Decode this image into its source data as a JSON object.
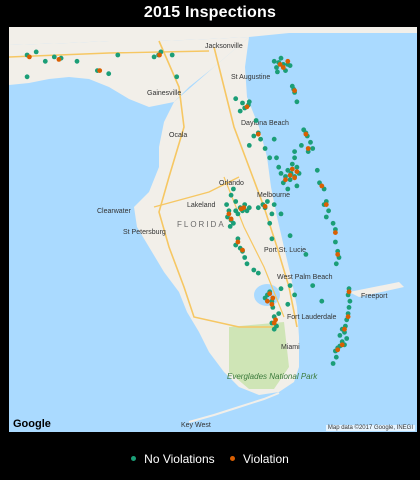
{
  "title": "2015 Inspections",
  "colors": {
    "no_violation": "#1b9e77",
    "violation": "#d95f02",
    "water": "#aadaff",
    "land": "#f2efe9",
    "park": "#cfe5b6",
    "road": "#f6c763"
  },
  "legend": {
    "items": [
      {
        "label": "No Violations",
        "color": "#1b9e77"
      },
      {
        "label": "Violation",
        "color": "#d95f02"
      }
    ]
  },
  "map": {
    "labels": {
      "jacksonville": "Jacksonville",
      "st_augustine": "St Augustine",
      "gainesville": "Gainesville",
      "ocala": "Ocala",
      "daytona": "Daytona Beach",
      "orlando": "Orlando",
      "melbourne": "Melbourne",
      "lakeland": "Lakeland",
      "clearwater": "Clearwater",
      "st_petersburg": "St Petersburg",
      "port_st_lucie": "Port St. Lucie",
      "west_palm_beach": "West Palm Beach",
      "freeport": "Freeport",
      "fort_lauderdale": "Fort Lauderdale",
      "miami": "Miami",
      "key_west": "Key West",
      "everglades": "Everglades National Park",
      "state": "FLORIDA"
    },
    "logo": "Google",
    "attribution": "Map data ©2017 Google, INEGI"
  },
  "chart_data": {
    "type": "scatter",
    "title": "2015 Inspections",
    "series": [
      {
        "name": "No Violations",
        "color": "#1b9e77",
        "points": [
          [
            -87.2,
            30.45
          ],
          [
            -87.0,
            30.5
          ],
          [
            -86.6,
            30.42
          ],
          [
            -86.45,
            30.4
          ],
          [
            -86.8,
            30.35
          ],
          [
            -86.1,
            30.35
          ],
          [
            -85.65,
            30.2
          ],
          [
            -85.4,
            30.15
          ],
          [
            -85.2,
            30.45
          ],
          [
            -84.3,
            30.45
          ],
          [
            -84.25,
            30.5
          ],
          [
            -84.4,
            30.42
          ],
          [
            -83.9,
            30.1
          ],
          [
            -84.0,
            30.45
          ],
          [
            -87.2,
            30.1
          ],
          [
            -81.65,
            30.33
          ],
          [
            -81.55,
            30.3
          ],
          [
            -81.7,
            30.25
          ],
          [
            -81.45,
            30.3
          ],
          [
            -81.4,
            30.28
          ],
          [
            -81.6,
            30.4
          ],
          [
            -81.75,
            30.35
          ],
          [
            -81.5,
            30.2
          ],
          [
            -81.68,
            30.18
          ],
          [
            -81.32,
            29.9
          ],
          [
            -81.3,
            29.85
          ],
          [
            -81.35,
            29.95
          ],
          [
            -81.25,
            29.7
          ],
          [
            -82.32,
            29.65
          ],
          [
            -82.4,
            29.6
          ],
          [
            -82.3,
            29.7
          ],
          [
            -82.45,
            29.68
          ],
          [
            -82.5,
            29.55
          ],
          [
            -82.15,
            29.4
          ],
          [
            -82.6,
            29.75
          ],
          [
            -82.1,
            29.2
          ],
          [
            -82.2,
            29.15
          ],
          [
            -82.05,
            29.1
          ],
          [
            -81.95,
            28.95
          ],
          [
            -82.3,
            29.0
          ],
          [
            -81.75,
            29.1
          ],
          [
            -81.05,
            29.2
          ],
          [
            -81.02,
            29.15
          ],
          [
            -81.1,
            29.25
          ],
          [
            -80.95,
            29.05
          ],
          [
            -80.9,
            28.95
          ],
          [
            -81.0,
            28.9
          ],
          [
            -81.15,
            29.0
          ],
          [
            -81.3,
            28.9
          ],
          [
            -81.38,
            28.55
          ],
          [
            -81.3,
            28.5
          ],
          [
            -81.45,
            28.6
          ],
          [
            -81.25,
            28.65
          ],
          [
            -81.4,
            28.45
          ],
          [
            -81.5,
            28.5
          ],
          [
            -81.2,
            28.55
          ],
          [
            -81.35,
            28.7
          ],
          [
            -81.55,
            28.4
          ],
          [
            -81.6,
            28.55
          ],
          [
            -81.7,
            28.8
          ],
          [
            -81.85,
            28.8
          ],
          [
            -81.65,
            28.65
          ],
          [
            -81.25,
            28.35
          ],
          [
            -81.45,
            28.3
          ],
          [
            -81.3,
            28.8
          ],
          [
            -80.8,
            28.6
          ],
          [
            -80.75,
            28.4
          ],
          [
            -80.65,
            28.3
          ],
          [
            -80.6,
            28.1
          ],
          [
            -80.65,
            28.05
          ],
          [
            -80.55,
            27.95
          ],
          [
            -80.6,
            27.85
          ],
          [
            -80.45,
            27.75
          ],
          [
            -80.4,
            27.65
          ],
          [
            -80.4,
            27.45
          ],
          [
            -80.35,
            27.3
          ],
          [
            -80.32,
            27.2
          ],
          [
            -80.38,
            27.1
          ],
          [
            -82.45,
            27.95
          ],
          [
            -82.5,
            28.0
          ],
          [
            -82.4,
            28.05
          ],
          [
            -82.55,
            27.9
          ],
          [
            -82.35,
            27.95
          ],
          [
            -82.3,
            28.0
          ],
          [
            -82.6,
            28.1
          ],
          [
            -82.7,
            28.2
          ],
          [
            -82.65,
            28.3
          ],
          [
            -82.75,
            27.95
          ],
          [
            -82.78,
            27.85
          ],
          [
            -82.65,
            27.75
          ],
          [
            -82.7,
            27.8
          ],
          [
            -82.72,
            27.7
          ],
          [
            -82.6,
            27.95
          ],
          [
            -82.8,
            28.05
          ],
          [
            -82.0,
            28.05
          ],
          [
            -81.95,
            28.0
          ],
          [
            -81.9,
            28.1
          ],
          [
            -82.1,
            28.0
          ],
          [
            -81.75,
            28.05
          ],
          [
            -81.6,
            27.9
          ],
          [
            -81.8,
            27.9
          ],
          [
            -81.85,
            27.75
          ],
          [
            -82.55,
            27.5
          ],
          [
            -82.6,
            27.4
          ],
          [
            -82.5,
            27.35
          ],
          [
            -82.45,
            27.3
          ],
          [
            -82.4,
            27.2
          ],
          [
            -82.35,
            27.1
          ],
          [
            -82.2,
            27.0
          ],
          [
            -82.1,
            26.95
          ],
          [
            -81.85,
            26.65
          ],
          [
            -81.9,
            26.6
          ],
          [
            -81.95,
            26.55
          ],
          [
            -81.8,
            26.5
          ],
          [
            -81.78,
            26.4
          ],
          [
            -81.75,
            26.25
          ],
          [
            -81.8,
            26.15
          ],
          [
            -81.7,
            26.1
          ],
          [
            -81.75,
            26.05
          ],
          [
            -81.6,
            26.7
          ],
          [
            -81.4,
            26.75
          ],
          [
            -81.3,
            26.6
          ],
          [
            -81.45,
            26.45
          ],
          [
            -81.65,
            26.3
          ],
          [
            -80.1,
            26.7
          ],
          [
            -80.12,
            26.6
          ],
          [
            -80.08,
            26.5
          ],
          [
            -80.1,
            26.4
          ],
          [
            -80.12,
            26.3
          ],
          [
            -80.15,
            26.2
          ],
          [
            -80.18,
            26.1
          ],
          [
            -80.2,
            26.0
          ],
          [
            -80.25,
            26.05
          ],
          [
            -80.3,
            25.95
          ],
          [
            -80.25,
            25.85
          ],
          [
            -80.3,
            25.78
          ],
          [
            -80.35,
            25.75
          ],
          [
            -80.4,
            25.7
          ],
          [
            -80.38,
            25.6
          ],
          [
            -80.45,
            25.5
          ],
          [
            -80.2,
            25.8
          ],
          [
            -80.15,
            25.9
          ],
          [
            -80.9,
            26.75
          ],
          [
            -81.05,
            27.25
          ],
          [
            -81.4,
            27.55
          ],
          [
            -81.8,
            27.5
          ],
          [
            -80.7,
            26.5
          ]
        ]
      },
      {
        "name": "Violation",
        "color": "#d95f02",
        "points": [
          [
            -87.15,
            30.42
          ],
          [
            -86.5,
            30.38
          ],
          [
            -84.28,
            30.45
          ],
          [
            -85.6,
            30.2
          ],
          [
            -81.62,
            30.3
          ],
          [
            -81.55,
            30.25
          ],
          [
            -81.45,
            30.35
          ],
          [
            -81.3,
            29.88
          ],
          [
            -82.35,
            29.62
          ],
          [
            -82.1,
            29.18
          ],
          [
            -81.05,
            29.18
          ],
          [
            -81.0,
            28.95
          ],
          [
            -81.4,
            28.52
          ],
          [
            -81.3,
            28.48
          ],
          [
            -81.5,
            28.45
          ],
          [
            -81.35,
            28.62
          ],
          [
            -81.25,
            28.58
          ],
          [
            -80.7,
            28.35
          ],
          [
            -80.6,
            28.05
          ],
          [
            -80.4,
            27.6
          ],
          [
            -80.35,
            27.25
          ],
          [
            -82.48,
            27.98
          ],
          [
            -82.42,
            28.0
          ],
          [
            -82.7,
            27.82
          ],
          [
            -82.75,
            27.9
          ],
          [
            -82.55,
            27.45
          ],
          [
            -82.45,
            27.32
          ],
          [
            -81.95,
            28.02
          ],
          [
            -81.85,
            26.62
          ],
          [
            -81.8,
            26.45
          ],
          [
            -81.75,
            26.15
          ],
          [
            -81.78,
            26.55
          ],
          [
            -81.9,
            26.5
          ],
          [
            -81.72,
            26.2
          ],
          [
            -80.1,
            26.65
          ],
          [
            -80.12,
            26.25
          ],
          [
            -80.2,
            26.05
          ],
          [
            -80.25,
            25.8
          ],
          [
            -80.35,
            25.72
          ]
        ]
      }
    ]
  }
}
